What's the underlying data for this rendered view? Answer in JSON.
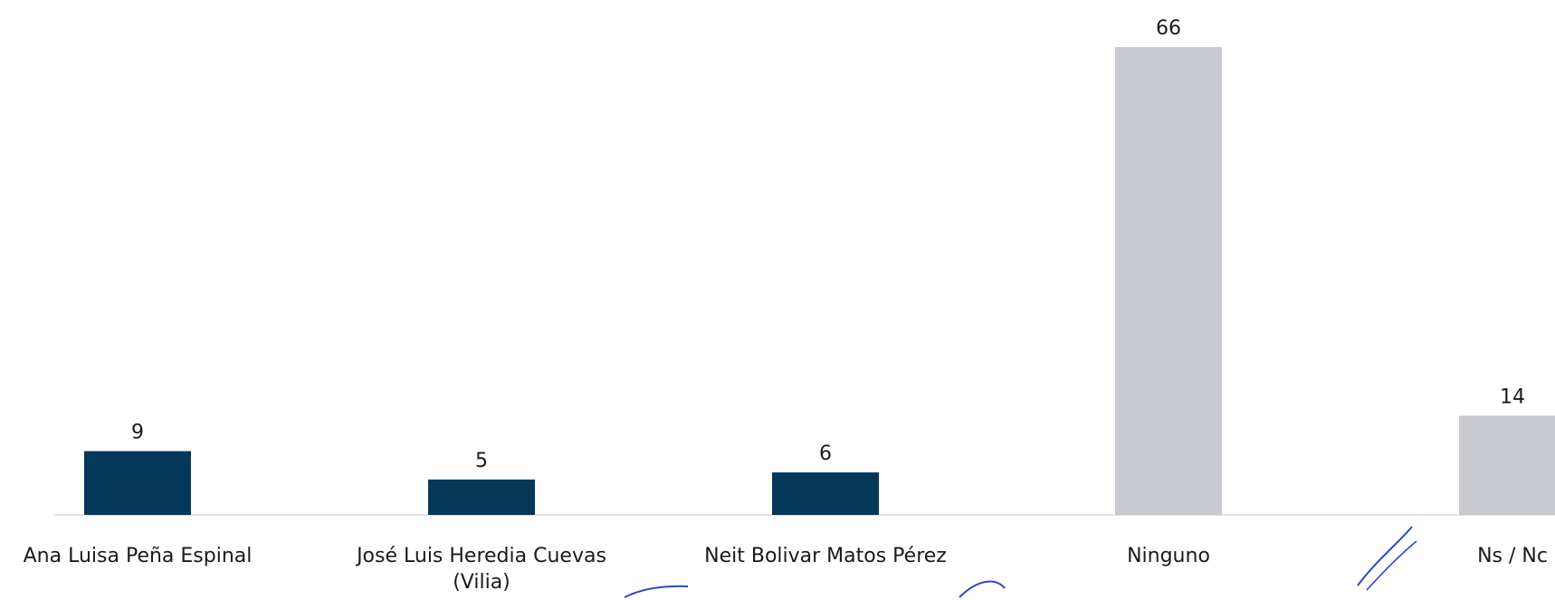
{
  "chart_data": {
    "type": "bar",
    "title": "",
    "xlabel": "",
    "ylabel": "",
    "categories": [
      [
        "Ana Luisa Peña Espinal"
      ],
      [
        "José Luis Heredia Cuevas",
        "(Vilia)"
      ],
      [
        "Neit Bolivar Matos Pérez"
      ],
      [
        "Ninguno"
      ],
      [
        "Ns / Nc"
      ]
    ],
    "values": [
      9,
      5,
      6,
      66,
      14
    ],
    "value_labels": [
      "9",
      "5",
      "6",
      "66",
      "14"
    ],
    "bar_colors": [
      "#06385a",
      "#06385a",
      "#06385a",
      "#c8c9cf",
      "#c8c9cf"
    ],
    "ylim": [
      0,
      66
    ],
    "grid": false,
    "legend": "none"
  },
  "colors": {
    "candidate_bar": "#06385a",
    "other_bar": "#c8c9cf",
    "baseline": "#e3e3e6",
    "text": "#1a1a1a"
  }
}
